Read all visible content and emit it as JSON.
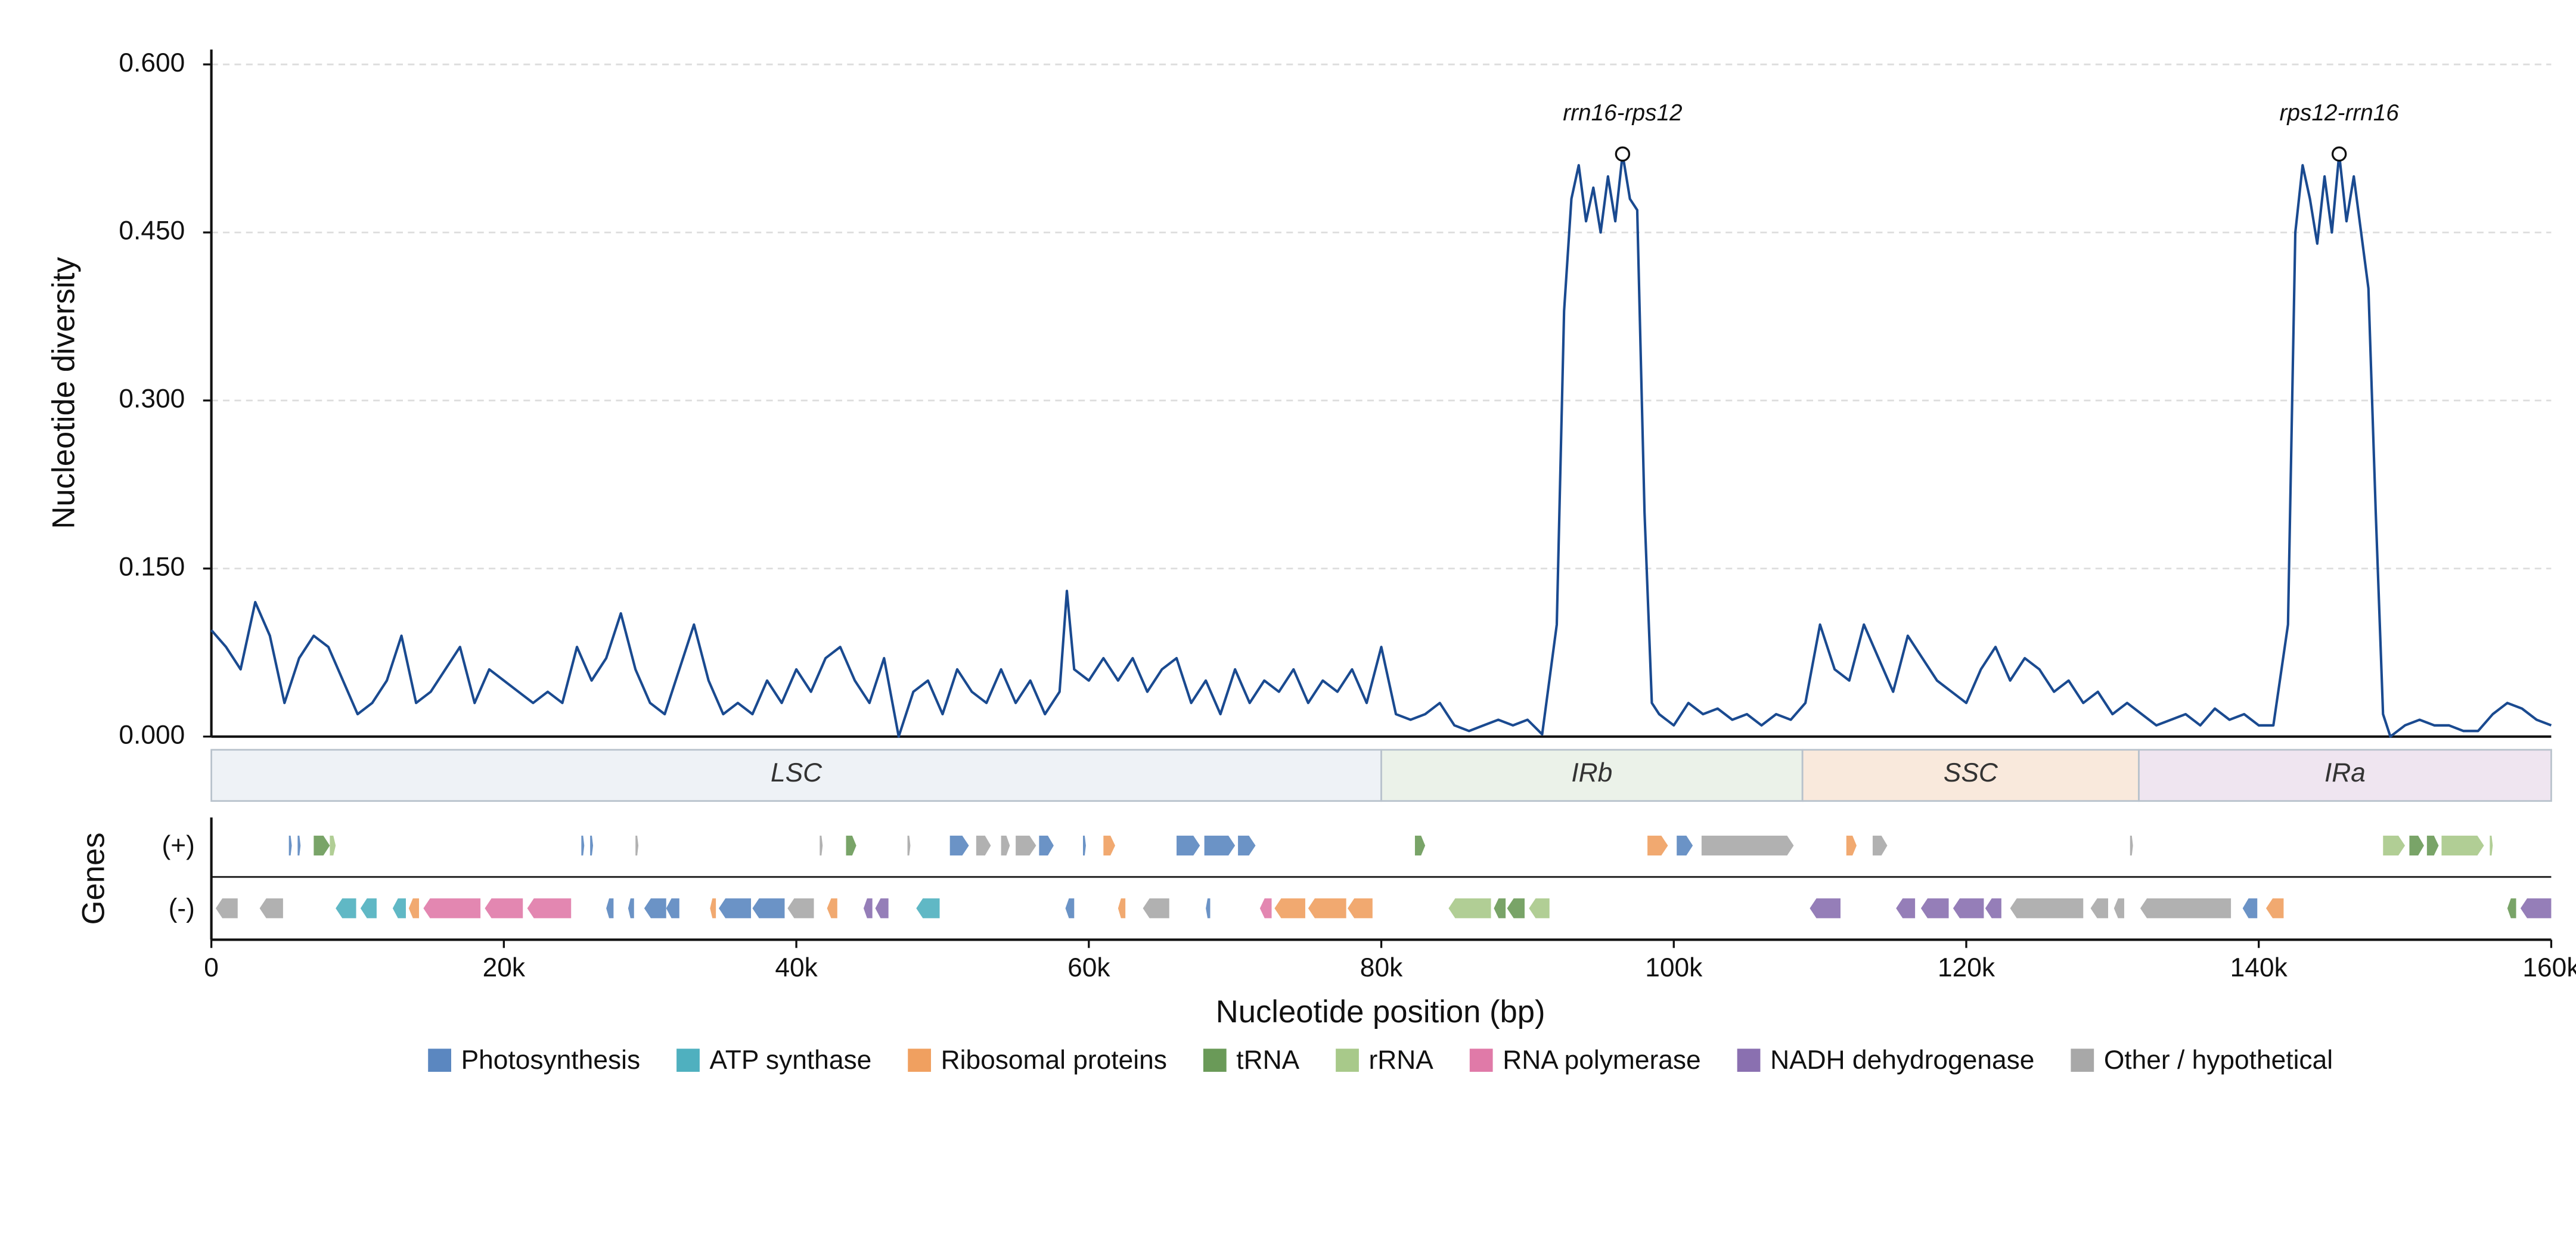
{
  "chart_data": {
    "type": "line",
    "ylabel": "Nucleotide diversity",
    "xlabel": "Nucleotide position (bp)",
    "genes_label": "Genes",
    "color": "#1a4a90",
    "grid": true,
    "xlim": [
      0,
      160000
    ],
    "ylim": [
      0,
      0.6
    ],
    "xticks": [
      0,
      {
        "value": 20000,
        "label": "20k"
      },
      {
        "value": 40000,
        "label": "40k"
      },
      {
        "value": 60000,
        "label": "60k"
      },
      {
        "value": 80000,
        "label": "80k"
      },
      {
        "value": 100000,
        "label": "100k"
      },
      {
        "value": 120000,
        "label": "120k"
      },
      {
        "value": 140000,
        "label": "140k"
      },
      {
        "value": 160000,
        "label": "160k"
      }
    ],
    "yticks": [
      {
        "value": 0,
        "label": "0.000"
      },
      {
        "value": 0.15,
        "label": "0.150"
      },
      {
        "value": 0.3,
        "label": "0.300"
      },
      {
        "value": 0.45,
        "label": "0.450"
      },
      {
        "value": 0.6,
        "label": "0.600"
      }
    ],
    "x": [
      0,
      1000,
      2000,
      3000,
      4000,
      5000,
      6000,
      7000,
      8000,
      9000,
      10000,
      11000,
      12000,
      13000,
      14000,
      15000,
      16000,
      17000,
      18000,
      19000,
      20000,
      21000,
      22000,
      23000,
      24000,
      25000,
      26000,
      27000,
      28000,
      29000,
      30000,
      31000,
      32000,
      33000,
      34000,
      35000,
      36000,
      37000,
      38000,
      39000,
      40000,
      41000,
      42000,
      43000,
      44000,
      45000,
      46000,
      47000,
      48000,
      49000,
      50000,
      51000,
      52000,
      53000,
      54000,
      55000,
      56000,
      57000,
      58000,
      58500,
      59000,
      60000,
      61000,
      62000,
      63000,
      64000,
      65000,
      66000,
      67000,
      68000,
      69000,
      70000,
      71000,
      72000,
      73000,
      74000,
      75000,
      76000,
      77000,
      78000,
      79000,
      80000,
      81000,
      82000,
      83000,
      84000,
      85000,
      86000,
      87000,
      88000,
      89000,
      90000,
      91000,
      92000,
      92500,
      93000,
      93500,
      94000,
      94500,
      95000,
      95500,
      96000,
      96500,
      97000,
      97500,
      98000,
      98500,
      99000,
      100000,
      101000,
      102000,
      103000,
      104000,
      105000,
      106000,
      107000,
      108000,
      109000,
      110000,
      111000,
      112000,
      113000,
      114000,
      115000,
      116000,
      117000,
      118000,
      119000,
      120000,
      121000,
      122000,
      123000,
      124000,
      125000,
      126000,
      127000,
      128000,
      129000,
      130000,
      131000,
      132000,
      133000,
      134000,
      135000,
      136000,
      137000,
      138000,
      139000,
      140000,
      141000,
      142000,
      142500,
      143000,
      143500,
      144000,
      144500,
      145000,
      145500,
      146000,
      146500,
      147000,
      147500,
      148000,
      148500,
      149000,
      150000,
      151000,
      152000,
      153000,
      154000,
      155000,
      156000,
      157000,
      158000,
      159000,
      160000
    ],
    "values": [
      0.095,
      0.08,
      0.06,
      0.12,
      0.09,
      0.03,
      0.07,
      0.09,
      0.08,
      0.05,
      0.02,
      0.03,
      0.05,
      0.09,
      0.03,
      0.04,
      0.06,
      0.08,
      0.03,
      0.06,
      0.05,
      0.04,
      0.03,
      0.04,
      0.03,
      0.08,
      0.05,
      0.07,
      0.11,
      0.06,
      0.03,
      0.02,
      0.06,
      0.1,
      0.05,
      0.02,
      0.03,
      0.02,
      0.05,
      0.03,
      0.06,
      0.04,
      0.07,
      0.08,
      0.05,
      0.03,
      0.07,
      0.0,
      0.04,
      0.05,
      0.02,
      0.06,
      0.04,
      0.03,
      0.06,
      0.03,
      0.05,
      0.02,
      0.04,
      0.13,
      0.06,
      0.05,
      0.07,
      0.05,
      0.07,
      0.04,
      0.06,
      0.07,
      0.03,
      0.05,
      0.02,
      0.06,
      0.03,
      0.05,
      0.04,
      0.06,
      0.03,
      0.05,
      0.04,
      0.06,
      0.03,
      0.08,
      0.02,
      0.015,
      0.02,
      0.03,
      0.01,
      0.005,
      0.01,
      0.015,
      0.01,
      0.015,
      0.002,
      0.1,
      0.38,
      0.48,
      0.51,
      0.46,
      0.49,
      0.45,
      0.5,
      0.46,
      0.52,
      0.48,
      0.47,
      0.2,
      0.03,
      0.02,
      0.01,
      0.03,
      0.02,
      0.025,
      0.015,
      0.02,
      0.01,
      0.02,
      0.015,
      0.03,
      0.1,
      0.06,
      0.05,
      0.1,
      0.07,
      0.04,
      0.09,
      0.07,
      0.05,
      0.04,
      0.03,
      0.06,
      0.08,
      0.05,
      0.07,
      0.06,
      0.04,
      0.05,
      0.03,
      0.04,
      0.02,
      0.03,
      0.02,
      0.01,
      0.015,
      0.02,
      0.01,
      0.025,
      0.015,
      0.02,
      0.01,
      0.01,
      0.1,
      0.45,
      0.51,
      0.48,
      0.44,
      0.5,
      0.45,
      0.52,
      0.46,
      0.5,
      0.45,
      0.4,
      0.2,
      0.02,
      0.0,
      0.01,
      0.015,
      0.01,
      0.01,
      0.005,
      0.005,
      0.02,
      0.03,
      0.025,
      0.015,
      0.01
    ],
    "annotations": [
      {
        "text": "rrn16-rps12",
        "x": 96500,
        "y": 0.52
      },
      {
        "text": "rps12-rrn16",
        "x": 145500,
        "y": 0.52
      }
    ],
    "regions": [
      {
        "name": "LSC",
        "start": 0,
        "end": 80000,
        "color": "#eef2f6"
      },
      {
        "name": "IRb",
        "start": 80000,
        "end": 108800,
        "color": "#ebf2e9"
      },
      {
        "name": "SSC",
        "start": 108800,
        "end": 131800,
        "color": "#f9e9dc"
      },
      {
        "name": "IRa",
        "start": 131800,
        "end": 160000,
        "color": "#efe5f0"
      }
    ],
    "legend": [
      {
        "name": "Photosynthesis",
        "color": "#5b87c0"
      },
      {
        "name": "ATP synthase",
        "color": "#4fb0bf"
      },
      {
        "name": "Ribosomal proteins",
        "color": "#f0a060"
      },
      {
        "name": "tRNA",
        "color": "#6a9a58"
      },
      {
        "name": "rRNA",
        "color": "#a8c98a"
      },
      {
        "name": "RNA polymerase",
        "color": "#e07aa8"
      },
      {
        "name": "NADH dehydrogenase",
        "color": "#8a70b0"
      },
      {
        "name": "Other / hypothetical",
        "color": "#a8a8a8"
      }
    ],
    "tracks": [
      {
        "label": "(+)",
        "genes": [
          {
            "start": 5300,
            "end": 5500,
            "category": "Photosynthesis"
          },
          {
            "start": 5900,
            "end": 6100,
            "category": "Photosynthesis"
          },
          {
            "start": 7000,
            "end": 8100,
            "category": "tRNA"
          },
          {
            "start": 8100,
            "end": 8500,
            "category": "rRNA"
          },
          {
            "start": 25300,
            "end": 25500,
            "category": "Photosynthesis"
          },
          {
            "start": 25900,
            "end": 26100,
            "category": "Photosynthesis"
          },
          {
            "start": 29000,
            "end": 29200,
            "category": "Other / hypothetical"
          },
          {
            "start": 41600,
            "end": 41800,
            "category": "Other / hypothetical"
          },
          {
            "start": 43400,
            "end": 44100,
            "category": "tRNA"
          },
          {
            "start": 47600,
            "end": 47800,
            "category": "Other / hypothetical"
          },
          {
            "start": 50500,
            "end": 51800,
            "category": "Photosynthesis"
          },
          {
            "start": 52300,
            "end": 53300,
            "category": "Other / hypothetical"
          },
          {
            "start": 54000,
            "end": 54600,
            "category": "Other / hypothetical"
          },
          {
            "start": 55000,
            "end": 56400,
            "category": "Other / hypothetical"
          },
          {
            "start": 56600,
            "end": 57600,
            "category": "Photosynthesis"
          },
          {
            "start": 59600,
            "end": 59800,
            "category": "Photosynthesis"
          },
          {
            "start": 61000,
            "end": 61800,
            "category": "Ribosomal proteins"
          },
          {
            "start": 66000,
            "end": 67600,
            "category": "Photosynthesis"
          },
          {
            "start": 67900,
            "end": 70000,
            "category": "Photosynthesis"
          },
          {
            "start": 70200,
            "end": 71400,
            "category": "Photosynthesis"
          },
          {
            "start": 82300,
            "end": 83000,
            "category": "tRNA"
          },
          {
            "start": 98200,
            "end": 99600,
            "category": "Ribosomal proteins"
          },
          {
            "start": 100200,
            "end": 101300,
            "category": "Photosynthesis"
          },
          {
            "start": 101900,
            "end": 108200,
            "category": "Other / hypothetical"
          },
          {
            "start": 111800,
            "end": 112500,
            "category": "Ribosomal proteins"
          },
          {
            "start": 113600,
            "end": 114600,
            "category": "Other / hypothetical"
          },
          {
            "start": 131200,
            "end": 131400,
            "category": "Other / hypothetical"
          },
          {
            "start": 148500,
            "end": 150000,
            "category": "rRNA"
          },
          {
            "start": 150300,
            "end": 151300,
            "category": "tRNA"
          },
          {
            "start": 151500,
            "end": 152300,
            "category": "tRNA"
          },
          {
            "start": 152500,
            "end": 155400,
            "category": "rRNA"
          },
          {
            "start": 155800,
            "end": 156000,
            "category": "rRNA"
          }
        ]
      },
      {
        "label": "(-)",
        "genes": [
          {
            "start": 300,
            "end": 1800,
            "category": "Other / hypothetical"
          },
          {
            "start": 3300,
            "end": 4900,
            "category": "Other / hypothetical"
          },
          {
            "start": 8500,
            "end": 9900,
            "category": "ATP synthase"
          },
          {
            "start": 10200,
            "end": 11300,
            "category": "ATP synthase"
          },
          {
            "start": 12400,
            "end": 13300,
            "category": "ATP synthase"
          },
          {
            "start": 13500,
            "end": 14200,
            "category": "Ribosomal proteins"
          },
          {
            "start": 14500,
            "end": 18400,
            "category": "RNA polymerase"
          },
          {
            "start": 18700,
            "end": 21300,
            "category": "RNA polymerase"
          },
          {
            "start": 21600,
            "end": 24600,
            "category": "RNA polymerase"
          },
          {
            "start": 27000,
            "end": 27500,
            "category": "Photosynthesis"
          },
          {
            "start": 28500,
            "end": 28900,
            "category": "Photosynthesis"
          },
          {
            "start": 29600,
            "end": 31100,
            "category": "Photosynthesis"
          },
          {
            "start": 31100,
            "end": 32000,
            "category": "Photosynthesis"
          },
          {
            "start": 34100,
            "end": 34500,
            "category": "Ribosomal proteins"
          },
          {
            "start": 34700,
            "end": 36900,
            "category": "Photosynthesis"
          },
          {
            "start": 37000,
            "end": 39200,
            "category": "Photosynthesis"
          },
          {
            "start": 39400,
            "end": 41200,
            "category": "Other / hypothetical"
          },
          {
            "start": 42100,
            "end": 42800,
            "category": "Ribosomal proteins"
          },
          {
            "start": 44600,
            "end": 45200,
            "category": "NADH dehydrogenase"
          },
          {
            "start": 45400,
            "end": 46300,
            "category": "NADH dehydrogenase"
          },
          {
            "start": 48200,
            "end": 49800,
            "category": "ATP synthase"
          },
          {
            "start": 58400,
            "end": 59000,
            "category": "Photosynthesis"
          },
          {
            "start": 62000,
            "end": 62500,
            "category": "Ribosomal proteins"
          },
          {
            "start": 63700,
            "end": 65500,
            "category": "Other / hypothetical"
          },
          {
            "start": 68000,
            "end": 68300,
            "category": "Photosynthesis"
          },
          {
            "start": 71700,
            "end": 72500,
            "category": "RNA polymerase"
          },
          {
            "start": 72700,
            "end": 74800,
            "category": "Ribosomal proteins"
          },
          {
            "start": 75000,
            "end": 77600,
            "category": "Ribosomal proteins"
          },
          {
            "start": 77700,
            "end": 79400,
            "category": "Ribosomal proteins"
          },
          {
            "start": 84600,
            "end": 87500,
            "category": "rRNA"
          },
          {
            "start": 87700,
            "end": 88500,
            "category": "tRNA"
          },
          {
            "start": 88600,
            "end": 89800,
            "category": "tRNA"
          },
          {
            "start": 90100,
            "end": 91500,
            "category": "rRNA"
          },
          {
            "start": 109300,
            "end": 111400,
            "category": "NADH dehydrogenase"
          },
          {
            "start": 115200,
            "end": 116500,
            "category": "NADH dehydrogenase"
          },
          {
            "start": 116900,
            "end": 118800,
            "category": "NADH dehydrogenase"
          },
          {
            "start": 119100,
            "end": 121200,
            "category": "NADH dehydrogenase"
          },
          {
            "start": 121300,
            "end": 122400,
            "category": "NADH dehydrogenase"
          },
          {
            "start": 123000,
            "end": 128000,
            "category": "Other / hypothetical"
          },
          {
            "start": 128500,
            "end": 129700,
            "category": "Other / hypothetical"
          },
          {
            "start": 130100,
            "end": 130800,
            "category": "Other / hypothetical"
          },
          {
            "start": 131900,
            "end": 138100,
            "category": "Other / hypothetical"
          },
          {
            "start": 138900,
            "end": 139900,
            "category": "Photosynthesis"
          },
          {
            "start": 140500,
            "end": 141700,
            "category": "Ribosomal proteins"
          },
          {
            "start": 157000,
            "end": 157600,
            "category": "tRNA"
          },
          {
            "start": 157900,
            "end": 160000,
            "category": "NADH dehydrogenase"
          }
        ]
      }
    ]
  }
}
